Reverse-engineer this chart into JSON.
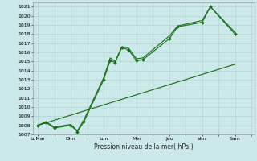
{
  "xlabel": "Pression niveau de la mer( hPa )",
  "ylim": [
    1007,
    1021.5
  ],
  "yticks": [
    1007,
    1008,
    1009,
    1010,
    1011,
    1012,
    1013,
    1014,
    1015,
    1016,
    1017,
    1018,
    1019,
    1020,
    1021
  ],
  "xtick_labels": [
    "LuMar",
    "Dim",
    "Lun",
    "Mer",
    "Jeu",
    "Ven",
    "Sam"
  ],
  "xtick_positions": [
    0,
    2,
    4,
    6,
    8,
    10,
    12
  ],
  "xlim": [
    -0.3,
    13.2
  ],
  "bg_color": "#cce8e8",
  "grid_color": "#aad0d0",
  "line_color": "#1a6b1a",
  "line1_x": [
    0,
    0.5,
    1.0,
    2.0,
    2.4,
    2.8,
    4.0,
    4.4,
    4.7,
    5.1,
    5.5,
    6.0,
    6.4,
    8.0,
    8.5,
    10.0,
    10.5,
    12.0
  ],
  "line1_y": [
    1008,
    1008.3,
    1007.7,
    1008.0,
    1007.3,
    1008.4,
    1013.0,
    1015.1,
    1014.9,
    1016.5,
    1016.3,
    1015.1,
    1015.2,
    1017.5,
    1018.8,
    1019.3,
    1021.0,
    1018.0
  ],
  "line2_x": [
    0,
    0.5,
    1.0,
    2.0,
    2.4,
    2.8,
    4.0,
    4.4,
    4.7,
    5.1,
    5.5,
    6.0,
    6.4,
    8.0,
    8.5,
    10.0,
    10.5,
    12.0
  ],
  "line2_y": [
    1008,
    1008.4,
    1007.8,
    1008.1,
    1007.4,
    1008.6,
    1013.2,
    1015.4,
    1015.0,
    1016.6,
    1016.5,
    1015.3,
    1015.4,
    1017.8,
    1018.9,
    1019.5,
    1021.0,
    1018.2
  ],
  "line3_x": [
    0,
    12.0
  ],
  "line3_y": [
    1008,
    1014.7
  ]
}
